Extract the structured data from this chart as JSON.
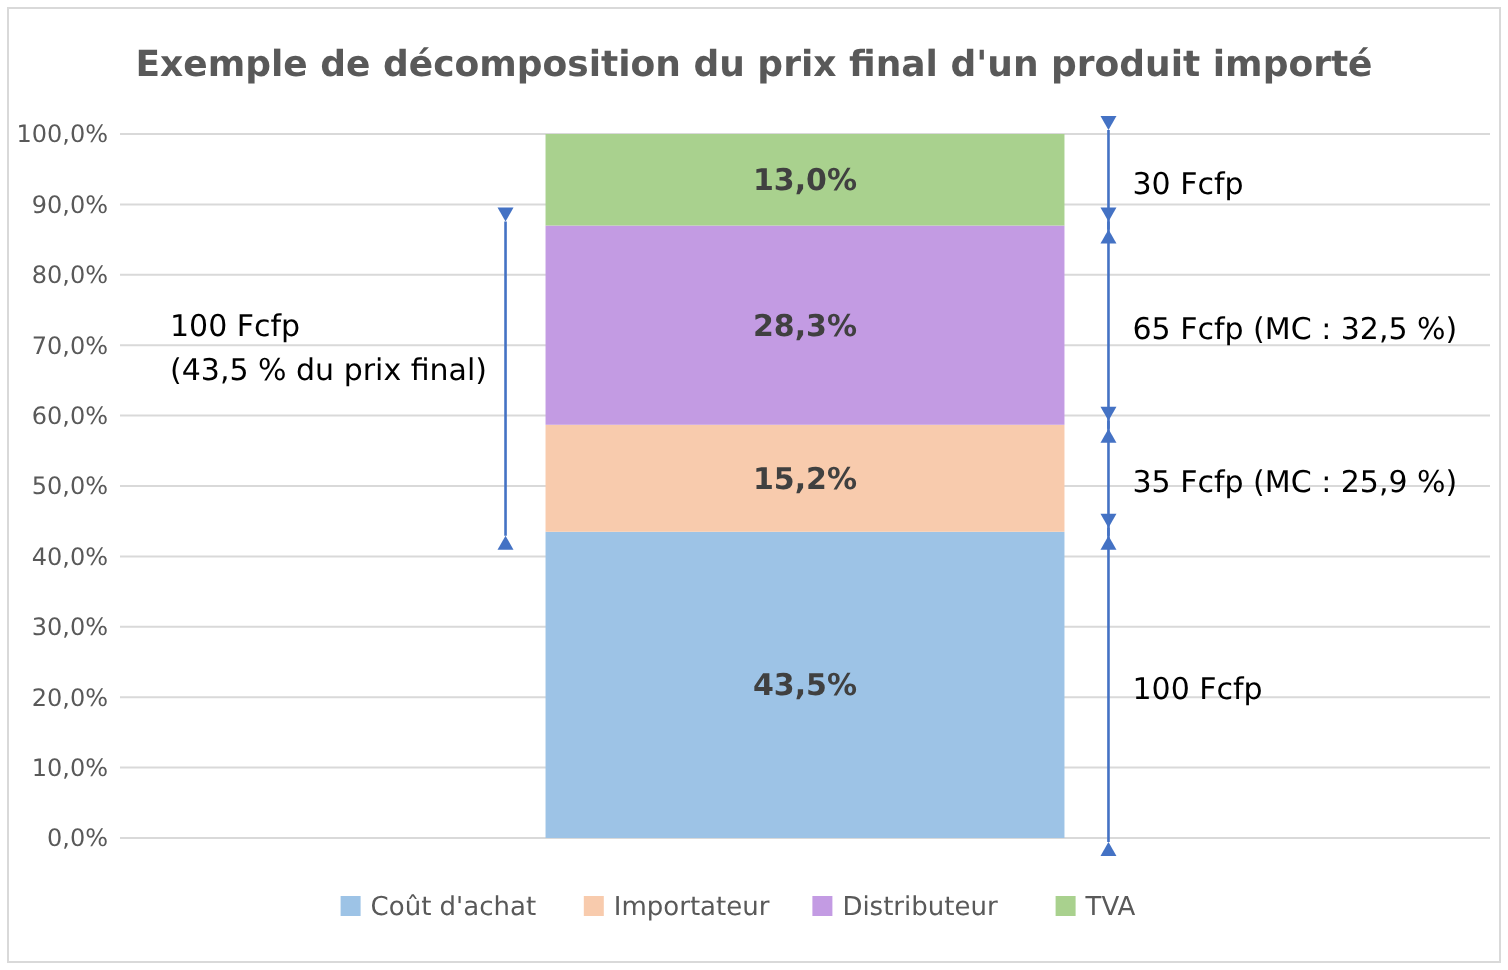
{
  "chart_data": {
    "type": "bar",
    "stacked": true,
    "title": "Exemple de décomposition du prix final d'un produit importé",
    "categories": [
      null
    ],
    "series": [
      {
        "name": "Coût d'achat",
        "color": "#9dc3e6",
        "values": [
          43.5
        ],
        "value_labels": [
          "43,5%"
        ]
      },
      {
        "name": "Importateur",
        "color": "#f8cbad",
        "values": [
          15.2
        ],
        "value_labels": [
          "15,2%"
        ]
      },
      {
        "name": "Distributeur",
        "color": "#c39be3",
        "values": [
          28.3
        ],
        "value_labels": [
          "28,3%"
        ]
      },
      {
        "name": "TVA",
        "color": "#a9d18e",
        "values": [
          13.0
        ],
        "value_labels": [
          "13,0%"
        ]
      }
    ],
    "ylim": [
      0,
      100
    ],
    "yticks": [
      {
        "value": 0,
        "label": "0,0%"
      },
      {
        "value": 10,
        "label": "10,0%"
      },
      {
        "value": 20,
        "label": "20,0%"
      },
      {
        "value": 30,
        "label": "30,0%"
      },
      {
        "value": 40,
        "label": "40,0%"
      },
      {
        "value": 50,
        "label": "50,0%"
      },
      {
        "value": 60,
        "label": "60,0%"
      },
      {
        "value": 70,
        "label": "70,0%"
      },
      {
        "value": 80,
        "label": "80,0%"
      },
      {
        "value": 90,
        "label": "90,0%"
      },
      {
        "value": 100,
        "label": "100,0%"
      }
    ],
    "grid": "y",
    "legend": "bottom",
    "annotations": [
      "100 Fcfp",
      "35 Fcfp (MC : 25,9 %)",
      "65 Fcfp (MC : 32,5 %)",
      "30 Fcfp",
      "100 Fcfp\n(43,5 % du prix final)"
    ]
  }
}
